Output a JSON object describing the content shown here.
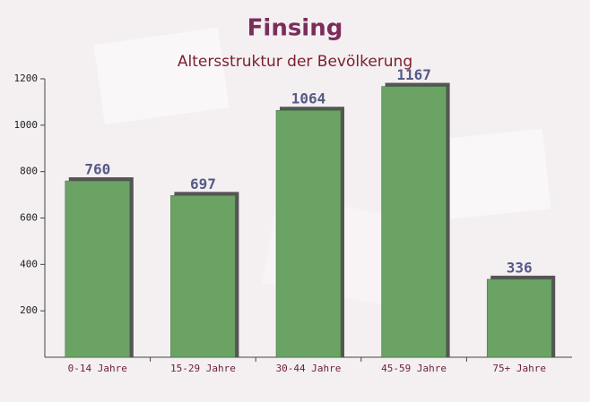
{
  "chart_data": {
    "type": "bar",
    "title": "Finsing",
    "subtitle": "Altersstruktur der Bevölkerung",
    "categories": [
      "0-14 Jahre",
      "15-29 Jahre",
      "30-44 Jahre",
      "45-59 Jahre",
      "75+ Jahre"
    ],
    "values": [
      760,
      697,
      1064,
      1167,
      336
    ],
    "color": "#6aa364",
    "ylim": [
      0,
      1200
    ],
    "yticks": [
      200,
      400,
      600,
      800,
      1000,
      1200
    ]
  }
}
